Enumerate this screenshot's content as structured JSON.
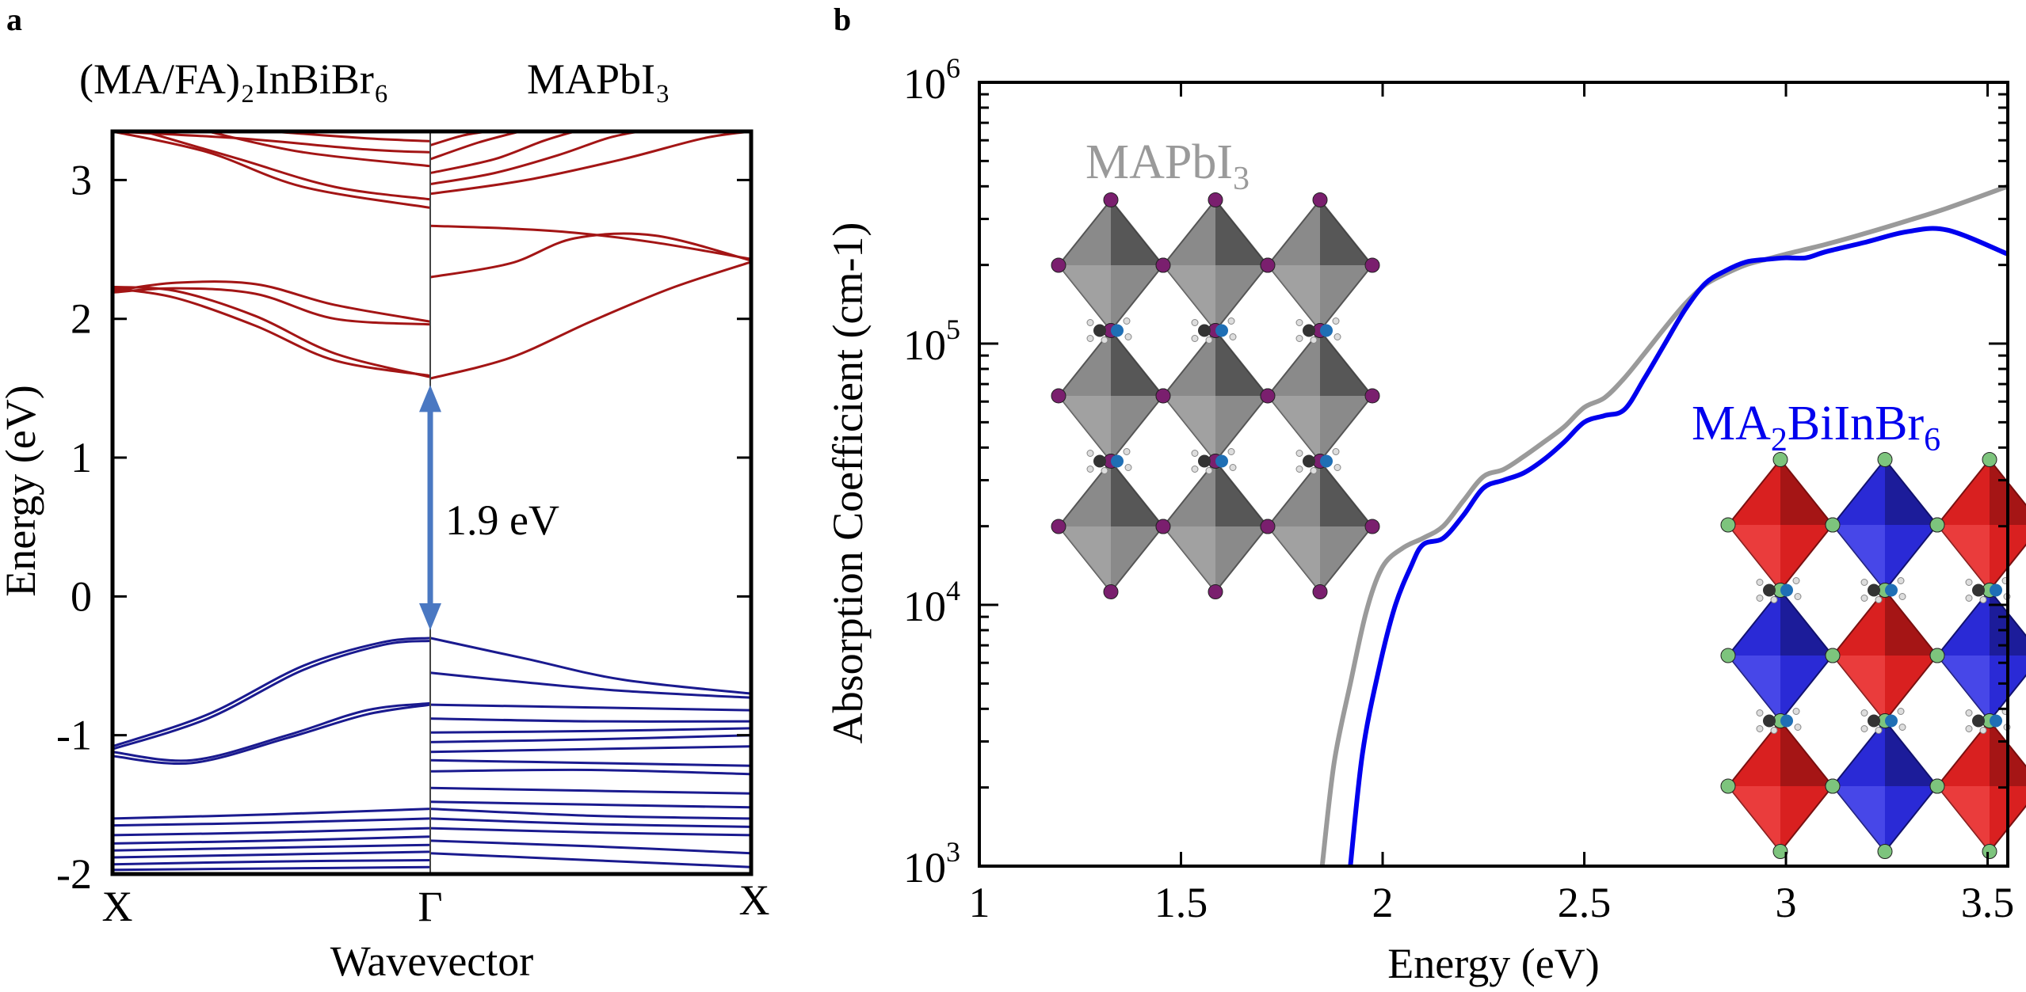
{
  "colors": {
    "conduction": "#a31515",
    "valence": "#1a1a8f",
    "arrow": "#4a78c2",
    "mapbi3": "#9a9a9a",
    "ma2biinbr6": "#0000ee"
  },
  "chart_data": [
    {
      "type": "line",
      "panel_label": "a",
      "title_left": "(MA/FA)₂InBiBr₆",
      "title_right": "MAPbI₃",
      "xlabel": "Wavevector",
      "ylabel": "Energy (eV)",
      "ylim": [
        -2,
        3.35
      ],
      "yticks": [
        "3",
        "2",
        "1",
        "0",
        "-1",
        "-2"
      ],
      "ytick_values": [
        3,
        2,
        1,
        0,
        -1,
        -2
      ],
      "kpoint_labels": [
        "X",
        "Γ",
        "X"
      ],
      "annotation": "1.9 eV",
      "gap_from": -0.3,
      "gap_to": 1.58,
      "left_conduction": [
        {
          "x": [
            0,
            0.2,
            0.45,
            0.7,
            1
          ],
          "y": [
            2.2,
            2.26,
            2.25,
            2.1,
            1.98
          ]
        },
        {
          "x": [
            0,
            0.2,
            0.45,
            0.7,
            1
          ],
          "y": [
            2.19,
            2.22,
            2.18,
            2.0,
            1.96
          ]
        },
        {
          "x": [
            0,
            0.2,
            0.45,
            0.7,
            1
          ],
          "y": [
            2.23,
            2.2,
            2.02,
            1.75,
            1.58
          ]
        },
        {
          "x": [
            0,
            0.2,
            0.45,
            0.7,
            1
          ],
          "y": [
            2.22,
            2.15,
            1.95,
            1.7,
            1.59
          ]
        },
        {
          "x": [
            0,
            0.3,
            0.6,
            1
          ],
          "y": [
            3.35,
            3.2,
            2.95,
            2.8
          ]
        },
        {
          "x": [
            0.1,
            0.4,
            0.7,
            1
          ],
          "y": [
            3.35,
            3.15,
            2.95,
            2.86
          ]
        },
        {
          "x": [
            0.3,
            0.6,
            1
          ],
          "y": [
            3.35,
            3.2,
            3.1
          ]
        },
        {
          "x": [
            0,
            0.4,
            0.8,
            1
          ],
          "y": [
            3.35,
            3.3,
            3.22,
            3.2
          ]
        },
        {
          "x": [
            0.5,
            0.8,
            1
          ],
          "y": [
            3.35,
            3.3,
            3.28
          ]
        }
      ],
      "left_valence": [
        {
          "x": [
            0,
            0.3,
            0.6,
            0.85,
            1
          ],
          "y": [
            -1.08,
            -0.85,
            -0.5,
            -0.33,
            -0.3
          ]
        },
        {
          "x": [
            0,
            0.3,
            0.6,
            0.85,
            1
          ],
          "y": [
            -1.1,
            -0.88,
            -0.53,
            -0.35,
            -0.32
          ]
        },
        {
          "x": [
            0,
            0.25,
            0.55,
            0.8,
            1
          ],
          "y": [
            -1.12,
            -1.18,
            -1.0,
            -0.82,
            -0.77
          ]
        },
        {
          "x": [
            0,
            0.25,
            0.55,
            0.8,
            1
          ],
          "y": [
            -1.15,
            -1.2,
            -1.02,
            -0.85,
            -0.78
          ]
        },
        {
          "x": [
            0,
            0.5,
            1
          ],
          "y": [
            -1.6,
            -1.57,
            -1.53
          ]
        },
        {
          "x": [
            0,
            0.5,
            1
          ],
          "y": [
            -1.65,
            -1.63,
            -1.6
          ]
        },
        {
          "x": [
            0,
            0.5,
            1
          ],
          "y": [
            -1.72,
            -1.7,
            -1.67
          ]
        },
        {
          "x": [
            0,
            0.5,
            1
          ],
          "y": [
            -1.78,
            -1.76,
            -1.73
          ]
        },
        {
          "x": [
            0,
            0.5,
            1
          ],
          "y": [
            -1.83,
            -1.81,
            -1.79
          ]
        },
        {
          "x": [
            0,
            0.5,
            1
          ],
          "y": [
            -1.88,
            -1.86,
            -1.84
          ]
        },
        {
          "x": [
            0,
            0.5,
            1
          ],
          "y": [
            -1.93,
            -1.91,
            -1.9
          ]
        },
        {
          "x": [
            0,
            0.5,
            1
          ],
          "y": [
            -1.97,
            -1.96,
            -1.95
          ]
        }
      ],
      "right_conduction": [
        {
          "x": [
            0,
            0.25,
            0.5,
            0.75,
            1
          ],
          "y": [
            1.57,
            1.72,
            1.98,
            2.22,
            2.41
          ]
        },
        {
          "x": [
            0,
            0.25,
            0.45,
            0.7,
            1
          ],
          "y": [
            2.3,
            2.4,
            2.58,
            2.6,
            2.42
          ]
        },
        {
          "x": [
            0,
            0.25,
            0.45,
            0.7,
            1
          ],
          "y": [
            2.67,
            2.65,
            2.62,
            2.55,
            2.43
          ]
        },
        {
          "x": [
            0,
            0.3,
            0.6,
            0.85,
            1
          ],
          "y": [
            2.9,
            3.0,
            3.15,
            3.3,
            3.35
          ]
        },
        {
          "x": [
            0,
            0.2,
            0.4,
            0.55,
            0.65
          ],
          "y": [
            2.97,
            3.05,
            3.18,
            3.3,
            3.35
          ]
        },
        {
          "x": [
            0,
            0.2,
            0.35,
            0.45
          ],
          "y": [
            3.05,
            3.15,
            3.28,
            3.35
          ]
        },
        {
          "x": [
            0,
            0.15,
            0.28
          ],
          "y": [
            3.15,
            3.27,
            3.35
          ]
        },
        {
          "x": [
            0,
            0.1,
            0.18
          ],
          "y": [
            3.25,
            3.32,
            3.35
          ]
        }
      ],
      "right_valence": [
        {
          "x": [
            0,
            0.3,
            0.6,
            1
          ],
          "y": [
            -0.3,
            -0.45,
            -0.6,
            -0.7
          ]
        },
        {
          "x": [
            0,
            0.3,
            0.6,
            1
          ],
          "y": [
            -0.55,
            -0.62,
            -0.68,
            -0.73
          ]
        },
        {
          "x": [
            0,
            0.5,
            1
          ],
          "y": [
            -0.78,
            -0.8,
            -0.82
          ]
        },
        {
          "x": [
            0,
            0.5,
            1
          ],
          "y": [
            -0.88,
            -0.9,
            -0.9
          ]
        },
        {
          "x": [
            0,
            0.5,
            1
          ],
          "y": [
            -0.98,
            -0.97,
            -0.95
          ]
        },
        {
          "x": [
            0,
            0.5,
            1
          ],
          "y": [
            -1.05,
            -1.03,
            -1.0
          ]
        },
        {
          "x": [
            0,
            0.5,
            1
          ],
          "y": [
            -1.12,
            -1.1,
            -1.08
          ]
        },
        {
          "x": [
            0,
            0.5,
            1
          ],
          "y": [
            -1.18,
            -1.2,
            -1.22
          ]
        },
        {
          "x": [
            0,
            0.5,
            1
          ],
          "y": [
            -1.26,
            -1.25,
            -1.28
          ]
        },
        {
          "x": [
            0,
            0.5,
            1
          ],
          "y": [
            -1.38,
            -1.4,
            -1.42
          ]
        },
        {
          "x": [
            0,
            0.5,
            1
          ],
          "y": [
            -1.48,
            -1.5,
            -1.52
          ]
        },
        {
          "x": [
            0,
            0.5,
            1
          ],
          "y": [
            -1.53,
            -1.58,
            -1.6
          ]
        },
        {
          "x": [
            0,
            0.5,
            1
          ],
          "y": [
            -1.6,
            -1.64,
            -1.66
          ]
        },
        {
          "x": [
            0,
            0.5,
            1
          ],
          "y": [
            -1.67,
            -1.7,
            -1.72
          ]
        },
        {
          "x": [
            0,
            0.5,
            1
          ],
          "y": [
            -1.76,
            -1.8,
            -1.85
          ]
        },
        {
          "x": [
            0,
            0.5,
            1
          ],
          "y": [
            -1.85,
            -1.9,
            -1.95
          ]
        }
      ]
    },
    {
      "type": "line",
      "panel_label": "b",
      "xlabel": "Energy (eV)",
      "ylabel": "Absorption Coefficient  (cm-1)",
      "yscale": "log",
      "xlim": [
        1,
        3.55
      ],
      "ylim": [
        1000,
        1000000
      ],
      "xticks": [
        "1",
        "1.5",
        "2",
        "2.5",
        "3",
        "3.5"
      ],
      "xtick_values": [
        1,
        1.5,
        2,
        2.5,
        3,
        3.5
      ],
      "ytick_labels": [
        {
          "base": "10",
          "exp": "6",
          "value": 1000000
        },
        {
          "base": "10",
          "exp": "5",
          "value": 100000
        },
        {
          "base": "10",
          "exp": "4",
          "value": 10000
        },
        {
          "base": "10",
          "exp": "3",
          "value": 1000
        }
      ],
      "series": [
        {
          "name": "MAPbI₃",
          "label_main": "MAPbI",
          "label_sub": "3",
          "x": [
            1.85,
            1.88,
            1.92,
            1.96,
            2.0,
            2.05,
            2.1,
            2.15,
            2.2,
            2.25,
            2.3,
            2.35,
            2.4,
            2.45,
            2.5,
            2.55,
            2.6,
            2.65,
            2.7,
            2.75,
            2.8,
            2.85,
            2.9,
            2.95,
            3.0,
            3.1,
            3.2,
            3.3,
            3.4,
            3.55
          ],
          "y": [
            1000,
            2500,
            5000,
            9500,
            14000,
            16500,
            18000,
            20000,
            25000,
            31000,
            33000,
            37000,
            42000,
            48000,
            57000,
            62000,
            74000,
            92000,
            115000,
            142000,
            168000,
            185000,
            200000,
            210000,
            220000,
            240000,
            265000,
            295000,
            330000,
            400000
          ]
        },
        {
          "name": "MA₂BiInBr₆",
          "label_main": "MA",
          "label_sub1": "2",
          "label_mid": "BiInBr",
          "label_sub2": "6",
          "x": [
            1.92,
            1.95,
            1.99,
            2.03,
            2.07,
            2.1,
            2.15,
            2.2,
            2.25,
            2.3,
            2.35,
            2.4,
            2.45,
            2.5,
            2.55,
            2.6,
            2.65,
            2.7,
            2.75,
            2.8,
            2.85,
            2.9,
            2.95,
            3.0,
            3.05,
            3.1,
            3.2,
            3.3,
            3.4,
            3.55
          ],
          "y": [
            1000,
            2700,
            5600,
            9800,
            14000,
            17000,
            18000,
            22000,
            28000,
            30000,
            32000,
            36000,
            42000,
            50000,
            53000,
            56000,
            74000,
            100000,
            135000,
            170000,
            190000,
            205000,
            210000,
            213000,
            213000,
            225000,
            245000,
            268000,
            272000,
            220000
          ]
        }
      ]
    }
  ]
}
